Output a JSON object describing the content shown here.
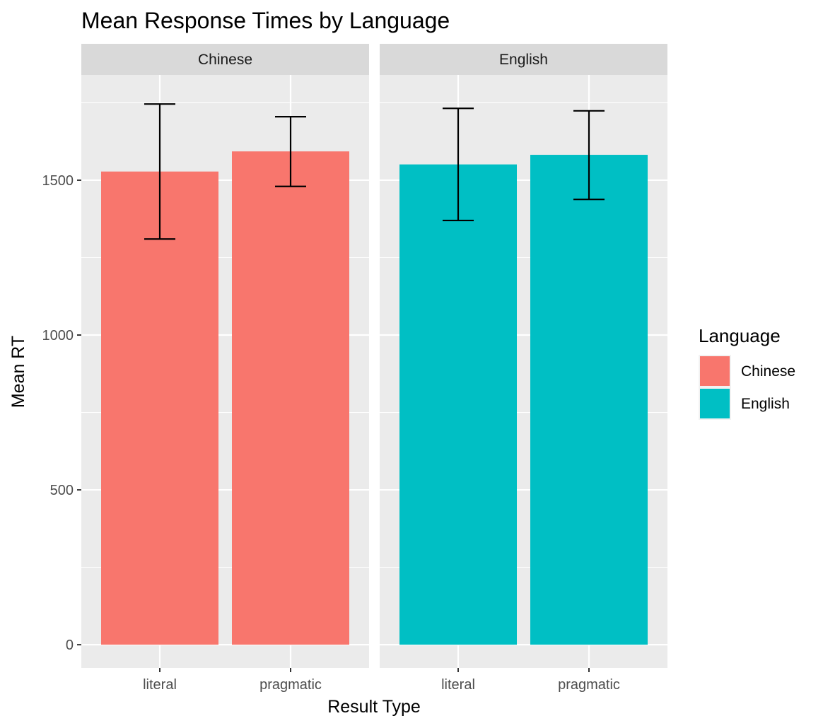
{
  "chart_data": {
    "type": "bar",
    "title": "Mean Response Times by Language",
    "xlabel": "Result Type",
    "ylabel": "Mean RT",
    "categories": [
      "literal",
      "pragmatic"
    ],
    "yticks": [
      0,
      500,
      1000,
      1500
    ],
    "ylim": [
      -75,
      1840
    ],
    "grid": true,
    "legend": {
      "title": "Language",
      "position": "right",
      "entries": [
        {
          "label": "Chinese",
          "color": "#F8766D"
        },
        {
          "label": "English",
          "color": "#00BFC4"
        }
      ]
    },
    "panels": [
      {
        "label": "Chinese",
        "color": "#F8766D",
        "values": [
          1528,
          1593
        ],
        "error_low": [
          1310,
          1480
        ],
        "error_high": [
          1746,
          1705
        ]
      },
      {
        "label": "English",
        "color": "#00BFC4",
        "values": [
          1551,
          1582
        ],
        "error_low": [
          1370,
          1438
        ],
        "error_high": [
          1732,
          1724
        ]
      }
    ]
  }
}
